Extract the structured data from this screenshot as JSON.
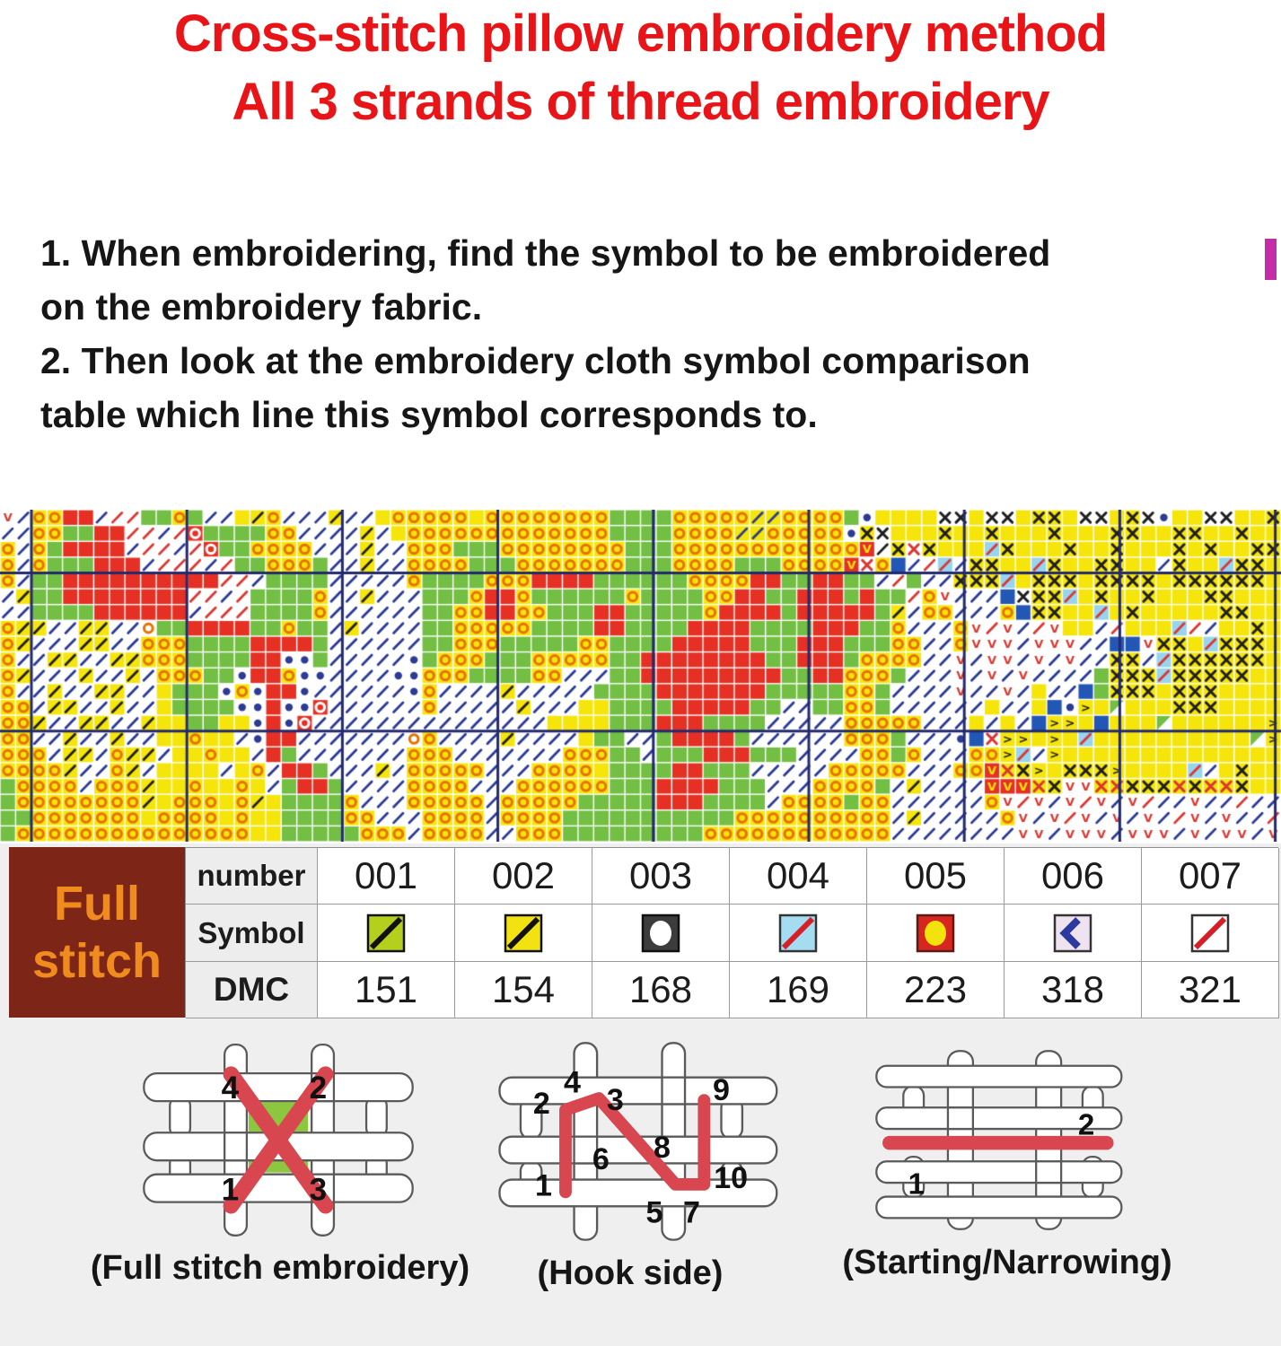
{
  "title": {
    "line1": "Cross-stitch pillow embroidery method",
    "line2": "All 3 strands of thread embroidery",
    "color": "#e81418"
  },
  "instructions": {
    "lines": [
      "1. When embroidering, find the symbol to be embroidered",
      "on the embroidery fabric.",
      "2. Then look at the embroidery cloth symbol comparison",
      "table which line this symbol corresponds to."
    ]
  },
  "side_mark_color": "#c62ca8",
  "pattern": {
    "cols": 82,
    "rows_count": 21,
    "heavy_line_color": "#232a6e",
    "cells": {
      ".": {
        "bg": "#ffffff"
      },
      "y": {
        "bg": "#f6e50a"
      },
      "o": {
        "bg": "#f6e50a",
        "glyph": "ring",
        "color": "#e87000"
      },
      "O": {
        "bg": "#ffffff",
        "glyph": "ring",
        "color": "#e87000"
      },
      "G": {
        "bg": "#72bf44",
        "glyph": "ring",
        "color": "#e87000"
      },
      "g": {
        "bg": "#72bf44"
      },
      "R": {
        "bg": "#e63024"
      },
      "W": {
        "bg": "#e63024",
        "glyph": "ring",
        "color": "#ffffff"
      },
      "u": {
        "bg": "#e63024",
        "glyph": "text",
        "text": "V",
        "color": "#f6e50a"
      },
      "b": {
        "bg": "#ffffff",
        "glyph": "diag",
        "color": "#2c3b94"
      },
      "r": {
        "bg": "#ffffff",
        "glyph": "diag",
        "color": "#da3832"
      },
      "B": {
        "bg": "#f6e50a",
        "glyph": "diag",
        "color": "#2c3b94"
      },
      "k": {
        "bg": "#f6e50a",
        "glyph": "diag",
        "color": "#1f1f1f"
      },
      "K": {
        "bg": "#ffffff",
        "glyph": "diag",
        "color": "#1f1f1f"
      },
      "X": {
        "bg": "#f6e50a",
        "glyph": "cross",
        "color": "#1f1f1f"
      },
      "x": {
        "bg": "#ffffff",
        "glyph": "cross",
        "color": "#1f1f1f"
      },
      "h": {
        "bg": "#f6e50a",
        "glyph": "cross",
        "color": "#da3832"
      },
      "H": {
        "bg": "#ffffff",
        "glyph": "cross",
        "color": "#da3832"
      },
      "c": {
        "bg": "#97d5ef",
        "glyph": "diag",
        "color": "#da3832"
      },
      "C": {
        "bg": "#97d5ef"
      },
      "S": {
        "bg": "#2257b5"
      },
      "d": {
        "bg": "#ffffff",
        "glyph": "dot",
        "color": "#2c3b94"
      },
      "v": {
        "bg": "#ffffff",
        "glyph": "text",
        "text": "V",
        "color": "#da3832"
      },
      "V": {
        "bg": "#f6e50a",
        "glyph": "text",
        "text": "V",
        "color": "#da3832"
      },
      ">": {
        "bg": "#f6e50a",
        "glyph": "text",
        "text": ">",
        "color": "#1f1f1f"
      },
      "n": {
        "bg": "#ffffff",
        "glyph": "tri",
        "color": "#72bf44"
      }
    },
    "rows": [
      "vbooRRbrrggogbbykobbbkbbyoooooyooooooooggggoooooBBoooogdyyyyxxyxxyXXyxxyXxdyyxxyyX",
      "bbooggRRrrbrWggggoobbbbkbyoooooooooooooggggooooBBooooodXxyyyXyyXyyyXyyyXXyyXXyyXyy",
      "obogRRRRbrrbrWggoooobbbkbbooogggoooooooogggoooooooooooouKXHXyyycXyyyXyyXyyyXyXyyXXy",
      "obogggRRRbrrrbrggooogbbkbboooogggooooooogggoooogggoooouHoSbrcbXXyycXyyXXyybXyycXXy",
      "obggRRRRRRRRRRrrbggggbbbbboggggoooRRRRggggggooooRRggRRggbrgbbXXXcyXXXyXXXXyXXXXXXy",
      "bkggRRRRRRRRrrbrggggobbkbbbgggoRRoggggggoggggooRRggRRRgRggrovbbbSxXXcyXyyXyyyXXyyy",
      "bbggggRRRRRRbrrrggggobbbbbbggooRRoogggRRgggggoRRRRgRRRRRgkboobbboSXXyycyXyyyyyXXyy",
      "okkbbkkbbOggRRRRggoggbkbbbbggoooooggggRRggggRRRRggggRRRggobbbovrvbrvyybryyycrbyyXy",
      "okbbbkkbboooggggRRRRgbbbbbbggooogggggooggggRRRRRgggRRRgggoobbovvvbvvvbbSSvXXycXXXy",
      "obbkkbbkkoooggggRRddgbbbbbdgooogggoooooggRRRRRRRRggRRRgoooobbvbvvbvbvbbXXbcXXXXXXy",
      "okbbbkbbkboooggdRRoddbbbbddoooggggoobbbggRRRRRRRRRggRRooogbbbvbvbvbbbbgXXXcXXXXXyy",
      "obbkbbkkbbygggdodRRdbbbbbbdobbbbkbbbbbggggRRRRRRRgggggoogbbbbvbbvbybbSgXXXyXXXyyyy",
      "oobkkbbkbbyggggddRddWbbbbbbobbbbbkbbbyyggggRRRRRggbbggoogbbbbbbybbySd>ynyyyXXXyyyy",
      "ookbbkkbbkyyggyydRdWbbbbbbbbbbbbbbbyyyygggRRRggggbbbbbooooobbbybybS>>ySyyynyyyyyy>",
      "oobbkbbkbbyyoyybdRRbbbbbbbOobbbbkbbbbyggbbgRRRRgbbbbbbooogbbbdSH>>y>ycyyyyyyyyyyn>",
      "ooobkkbokkbyyoyybRgbbbbbbbooobbbbbbboooggbgggRRRgggbbbboogobbboo>cb>yyyyyyyyyyyyyy>",
      "ooookbbokbyyyybyobRRgbbbkbooooobbbooooyggggRRgggbbbbbooooobbboouhX>yXXX>yyyycbyXyy",
      "gooooboookyyoyyoybgRRgbbbboooobbboooooogggRRRRgggbbboooogbkbbbbuuuhXvvhhXXXhXhhXyy",
      "gooooooookyoooyokyggggobbbooooobooooogggggRRRggggboooogoobbbbbbovrvbvrvbvrbbvbbrbb",
      "ggoooooooyooooyoyyggggoobbbooooboooogggggggggggoooooooooobkbbbbbovbvrvbvbvbrvbvbbrb",
      "goooooooooooooooyygggggoooboooobbooogggggggggoooooooooooobbbbbbbbvvbvvvbvvvbvbvvbvb"
    ]
  },
  "legend_table": {
    "corner": {
      "line1": "Full",
      "line2": "stitch",
      "bg": "#7d2517",
      "color": "#f08c1e"
    },
    "row_headers": [
      "number",
      "Symbol",
      "DMC"
    ],
    "numbers": [
      "001",
      "002",
      "003",
      "004",
      "005",
      "006",
      "007"
    ],
    "dmc": [
      "151",
      "154",
      "168",
      "169",
      "223",
      "318",
      "321"
    ],
    "symbols": [
      {
        "name": "chartreuse-black-diagonal",
        "kind": "diag",
        "bg": "#b5cf1d",
        "fg": "#111111",
        "border": "#111111"
      },
      {
        "name": "yellow-black-diagonal",
        "kind": "diag",
        "bg": "#f3e211",
        "fg": "#111111",
        "border": "#111111"
      },
      {
        "name": "dark-white-circle",
        "kind": "ellipse",
        "bg": "#3c3c3c",
        "fg": "#ffffff",
        "border": "#111111"
      },
      {
        "name": "skyblue-red-diagonal",
        "kind": "diag",
        "bg": "#a6dcf2",
        "fg": "#d61f26",
        "border": "#333333"
      },
      {
        "name": "red-yellow-circle",
        "kind": "ellipse",
        "bg": "#d8251d",
        "fg": "#f2e30c",
        "border": "#5a1a1a"
      },
      {
        "name": "lavender-blue-chevron",
        "kind": "chevron",
        "bg": "#efe3f2",
        "fg": "#2b3a9e",
        "border": "#333333"
      },
      {
        "name": "white-red-diagonal",
        "kind": "diag",
        "bg": "#ffffff",
        "fg": "#d61f26",
        "border": "#333333"
      }
    ]
  },
  "diagrams": [
    {
      "caption": "(Full stitch embroidery)",
      "labels": [
        "4",
        "2",
        "1",
        "3"
      ]
    },
    {
      "caption": "(Hook side)",
      "labels": [
        "2",
        "4",
        "3",
        "9",
        "6",
        "8",
        "1",
        "5",
        "7",
        "10"
      ]
    },
    {
      "caption": "(Starting/Narrowing)",
      "labels": [
        "2",
        "1"
      ]
    }
  ],
  "stitch_color": "#d8464f",
  "fabric_green": "#8dc63f"
}
